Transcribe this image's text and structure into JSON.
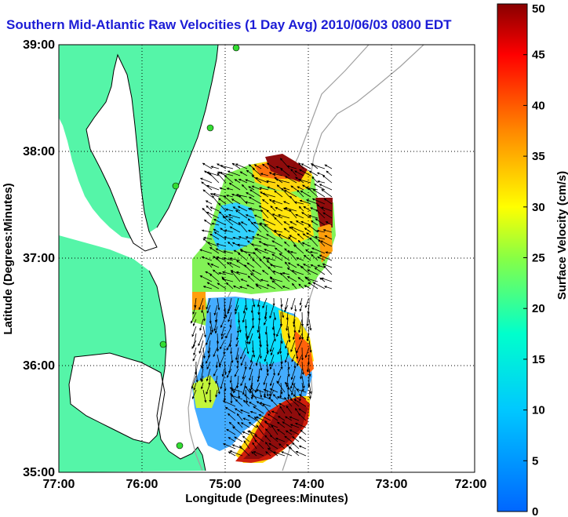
{
  "title": "Southern Mid-Atlantic Raw Velocities (1 Day Avg) 2010/06/03 0800 EDT",
  "map": {
    "x_axis_label": "Longitude (Degrees:Minutes)",
    "y_axis_label": "Latitude (Degrees:Minutes)",
    "x_ticks": [
      "77:00",
      "76:00",
      "75:00",
      "74:00",
      "73:00",
      "72:00"
    ],
    "y_ticks": [
      "39:00",
      "38:00",
      "37:00",
      "36:00",
      "35:00"
    ],
    "lon_range_west_deg": [
      77,
      72
    ],
    "lat_range_deg": [
      35,
      39
    ],
    "grid": "dotted",
    "colors": {
      "land": "#55f5a8",
      "coast_outline": "#000000",
      "bathymetry": "#a0a0a0",
      "sites": "#33dd33",
      "title": "#1c1cd6"
    }
  },
  "colorbar": {
    "label": "Surface Velocity (cm/s)",
    "ticks": [
      "0",
      "5",
      "10",
      "15",
      "20",
      "25",
      "30",
      "35",
      "40",
      "45",
      "50"
    ],
    "range": [
      0,
      50
    ],
    "colormap": "jet"
  }
}
